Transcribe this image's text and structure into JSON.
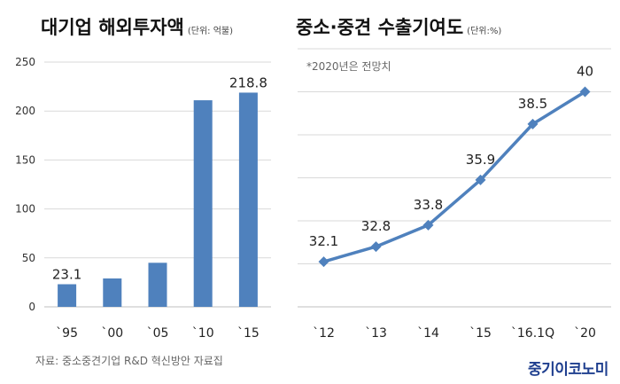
{
  "charts": {
    "left": {
      "title": "대기업 해외투자액",
      "unit": "(단위: 억불)"
    },
    "right": {
      "title": "중소·중견 수출기여도",
      "unit": "(단위:%)",
      "note": "*2020년은 전망치"
    }
  },
  "footer": {
    "source": "자료: 중소중견기업 R&D 혁신방안 자료집",
    "logo": "중기이코노미"
  },
  "colors": {
    "bar": "#4f81bd",
    "line": "#4f81bd",
    "grid": "#d9d9d9"
  },
  "chart_data": [
    {
      "type": "bar",
      "title": "대기업 해외투자액",
      "unit": "억불",
      "categories": [
        "`95",
        "`00",
        "`05",
        "`10",
        "`15"
      ],
      "values": [
        23.1,
        29,
        45,
        211,
        218.8
      ],
      "data_labels": [
        "23.1",
        "",
        "",
        "",
        "218.8"
      ],
      "ylim": [
        0,
        250
      ],
      "yticks": [
        0,
        50,
        100,
        150,
        200,
        250
      ],
      "grid": true
    },
    {
      "type": "line",
      "title": "중소·중견 수출기여도",
      "unit": "%",
      "categories": [
        "`12",
        "`13",
        "`14",
        "`15",
        "`16.1Q",
        "`20"
      ],
      "values": [
        32.1,
        32.8,
        33.8,
        35.9,
        38.5,
        40
      ],
      "data_labels": [
        "32.1",
        "32.8",
        "33.8",
        "35.9",
        "38.5",
        "40"
      ],
      "ylim": [
        30,
        42
      ],
      "grid": true
    }
  ]
}
